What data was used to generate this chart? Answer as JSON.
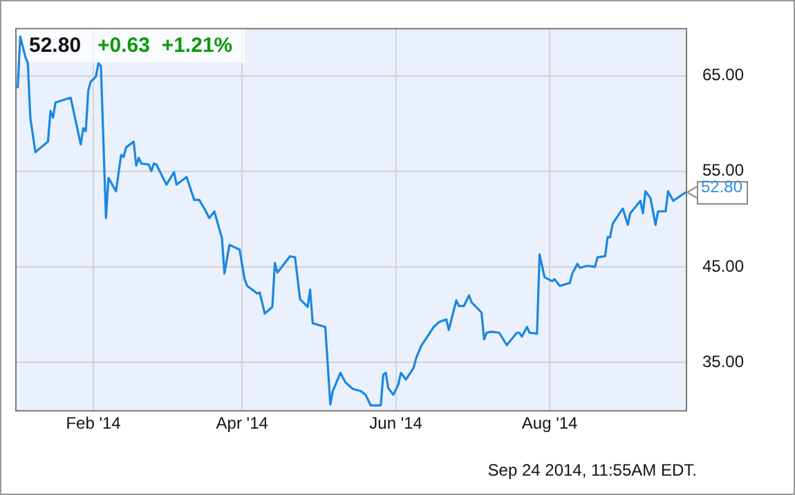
{
  "chart_data": {
    "type": "line",
    "title": "52.80",
    "subtitle": "+0.63  +1.21%",
    "x": [
      "2014-01-02",
      "2014-01-03",
      "2014-01-05",
      "2014-01-06",
      "2014-01-07",
      "2014-01-09",
      "2014-01-14",
      "2014-01-15",
      "2014-01-16",
      "2014-01-17",
      "2014-01-23",
      "2014-01-27",
      "2014-01-28",
      "2014-01-29",
      "2014-01-30",
      "2014-01-31",
      "2014-02-02",
      "2014-02-03",
      "2014-02-04",
      "2014-02-06",
      "2014-02-07",
      "2014-02-10",
      "2014-02-12",
      "2014-02-13",
      "2014-02-14",
      "2014-02-17",
      "2014-02-18",
      "2014-02-19",
      "2014-02-20",
      "2014-02-23",
      "2014-02-24",
      "2014-02-25",
      "2014-02-26",
      "2014-03-02",
      "2014-03-05",
      "2014-03-06",
      "2014-03-10",
      "2014-03-13",
      "2014-03-15",
      "2014-03-17",
      "2014-03-19",
      "2014-03-21",
      "2014-03-24",
      "2014-03-25",
      "2014-03-27",
      "2014-03-31",
      "2014-04-02",
      "2014-04-03",
      "2014-04-07",
      "2014-04-08",
      "2014-04-10",
      "2014-04-13",
      "2014-04-14",
      "2014-04-15",
      "2014-04-20",
      "2014-04-22",
      "2014-04-24",
      "2014-04-27",
      "2014-04-28",
      "2014-04-29",
      "2014-05-04",
      "2014-05-06",
      "2014-05-07",
      "2014-05-10",
      "2014-05-12",
      "2014-05-15",
      "2014-05-18",
      "2014-05-20",
      "2014-05-22",
      "2014-05-26",
      "2014-05-27",
      "2014-05-28",
      "2014-05-29",
      "2014-05-31",
      "2014-06-02",
      "2014-06-03",
      "2014-06-05",
      "2014-06-08",
      "2014-06-09",
      "2014-06-11",
      "2014-06-14",
      "2014-06-16",
      "2014-06-18",
      "2014-06-21",
      "2014-06-22",
      "2014-06-25",
      "2014-06-26",
      "2014-06-28",
      "2014-06-30",
      "2014-07-01",
      "2014-07-05",
      "2014-07-06",
      "2014-07-07",
      "2014-07-09",
      "2014-07-12",
      "2014-07-15",
      "2014-07-19",
      "2014-07-20",
      "2014-07-21",
      "2014-07-23",
      "2014-07-24",
      "2014-07-27",
      "2014-07-28",
      "2014-07-30",
      "2014-08-02",
      "2014-08-03",
      "2014-08-05",
      "2014-08-09",
      "2014-08-10",
      "2014-08-12",
      "2014-08-13",
      "2014-08-16",
      "2014-08-19",
      "2014-08-20",
      "2014-08-23",
      "2014-08-24",
      "2014-08-25",
      "2014-08-26",
      "2014-08-30",
      "2014-09-01",
      "2014-09-02",
      "2014-09-06",
      "2014-09-07",
      "2014-09-08",
      "2014-09-10",
      "2014-09-12",
      "2014-09-13",
      "2014-09-16",
      "2014-09-17",
      "2014-09-19",
      "2014-09-24"
    ],
    "series": [
      {
        "color": "#1a87e0",
        "values": [
          63.7,
          69.1,
          67.0,
          66.3,
          60.6,
          57.0,
          58.1,
          61.3,
          60.6,
          62.2,
          62.7,
          57.8,
          59.5,
          59.2,
          63.5,
          64.4,
          64.9,
          66.3,
          66.0,
          50.1,
          54.3,
          52.9,
          56.7,
          56.5,
          57.5,
          58.1,
          55.6,
          56.4,
          55.8,
          55.7,
          55.0,
          55.8,
          55.7,
          53.6,
          54.9,
          53.6,
          54.4,
          52.0,
          52.0,
          51.1,
          50.1,
          50.8,
          48.0,
          44.3,
          47.3,
          46.8,
          43.7,
          43.0,
          42.2,
          42.3,
          40.1,
          40.8,
          45.4,
          44.4,
          46.1,
          46.0,
          41.6,
          40.8,
          42.6,
          39.1,
          38.7,
          30.6,
          32.0,
          33.9,
          32.9,
          32.2,
          32.0,
          31.6,
          30.5,
          30.5,
          33.7,
          33.9,
          32.3,
          31.6,
          32.7,
          33.9,
          33.2,
          34.4,
          35.4,
          36.7,
          37.9,
          38.7,
          39.2,
          39.5,
          38.4,
          41.5,
          40.9,
          40.9,
          42.0,
          41.3,
          40.2,
          37.4,
          38.1,
          38.2,
          38.1,
          36.8,
          38.1,
          38.1,
          37.7,
          38.7,
          38.1,
          38.0,
          46.3,
          43.9,
          43.5,
          43.7,
          43.0,
          43.3,
          44.3,
          45.3,
          44.9,
          45.1,
          45.0,
          46.0,
          46.1,
          48.1,
          48.1,
          49.5,
          51.1,
          49.4,
          50.6,
          51.9,
          50.6,
          52.9,
          52.2,
          49.4,
          50.8,
          50.8,
          52.9,
          51.9,
          52.8
        ]
      }
    ],
    "xlim": [
      "2014-01-01",
      "2014-09-24"
    ],
    "xticks": [
      {
        "value": "2014-02-01",
        "label": "Feb '14"
      },
      {
        "value": "2014-04-01",
        "label": "Apr '14"
      },
      {
        "value": "2014-06-01",
        "label": "Jun '14"
      },
      {
        "value": "2014-08-01",
        "label": "Aug '14"
      }
    ],
    "ylim": [
      30,
      70
    ],
    "yticks": [
      {
        "value": 35,
        "label": "35.00"
      },
      {
        "value": 45,
        "label": "45.00"
      },
      {
        "value": 55,
        "label": "55.00"
      },
      {
        "value": 65,
        "label": "65.00"
      }
    ],
    "grid": true,
    "legend": false,
    "marker": "none",
    "line_style": "solid",
    "annotations": [
      {
        "text": "52.80",
        "x": "2014-09-24",
        "y": 52.8
      },
      "Sep 24 2014, 11:55AM EDT."
    ]
  }
}
